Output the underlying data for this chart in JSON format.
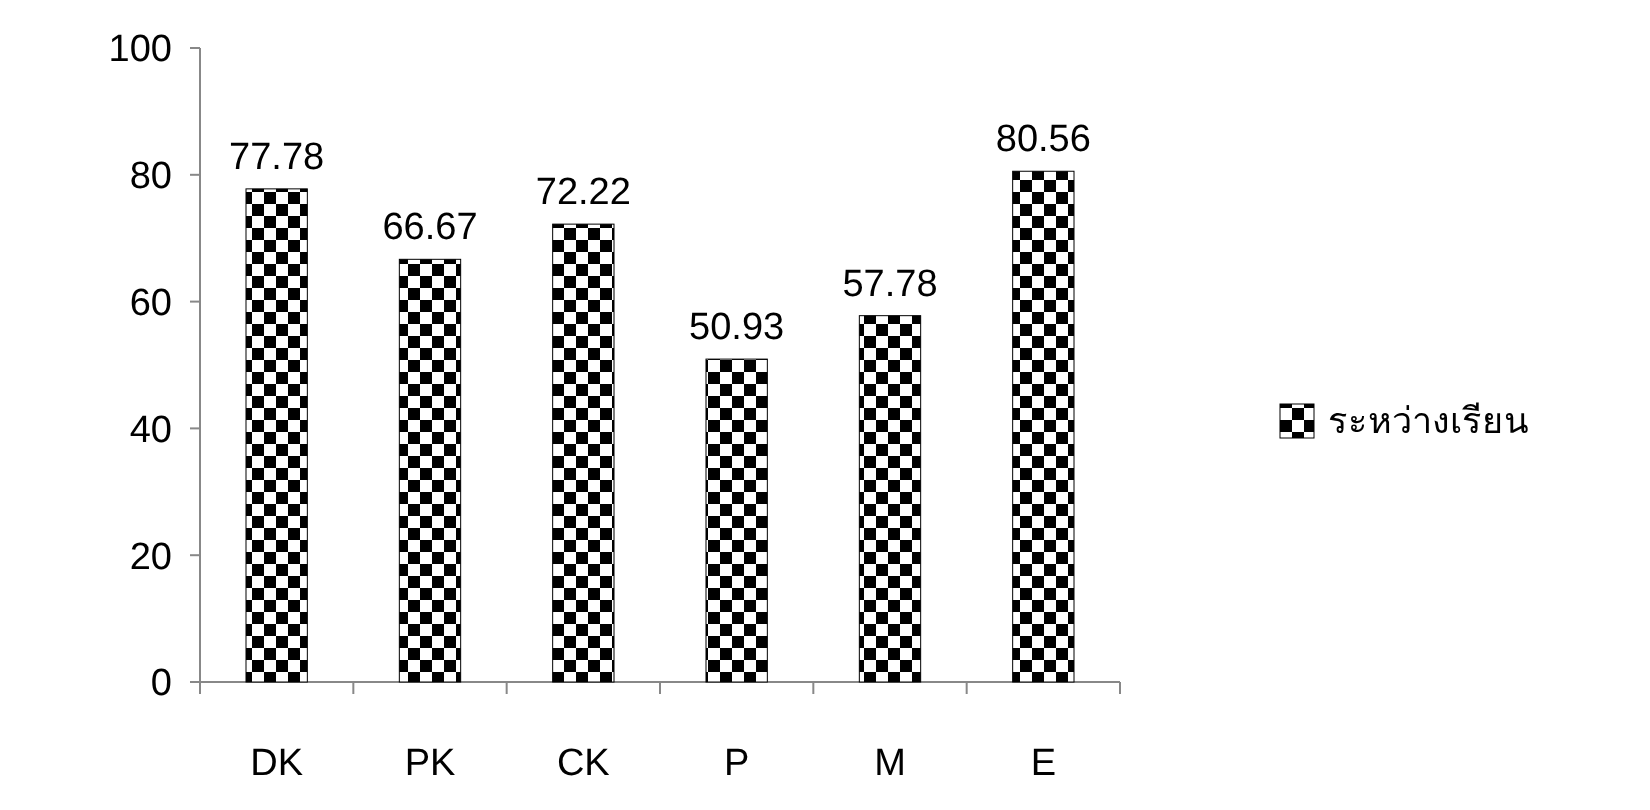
{
  "chart_data": {
    "type": "bar",
    "categories": [
      "DK",
      "PK",
      "CK",
      "P",
      "M",
      "E"
    ],
    "series": [
      {
        "name": "ระหว่างเรียน",
        "color": "#000000",
        "values": [
          77.78,
          66.67,
          72.22,
          50.93,
          57.78,
          80.56
        ]
      }
    ],
    "ylim": [
      0,
      100
    ],
    "yticks": [
      0,
      20,
      40,
      60,
      80,
      100
    ],
    "data_labels": true,
    "legend": "right",
    "grid": false
  }
}
